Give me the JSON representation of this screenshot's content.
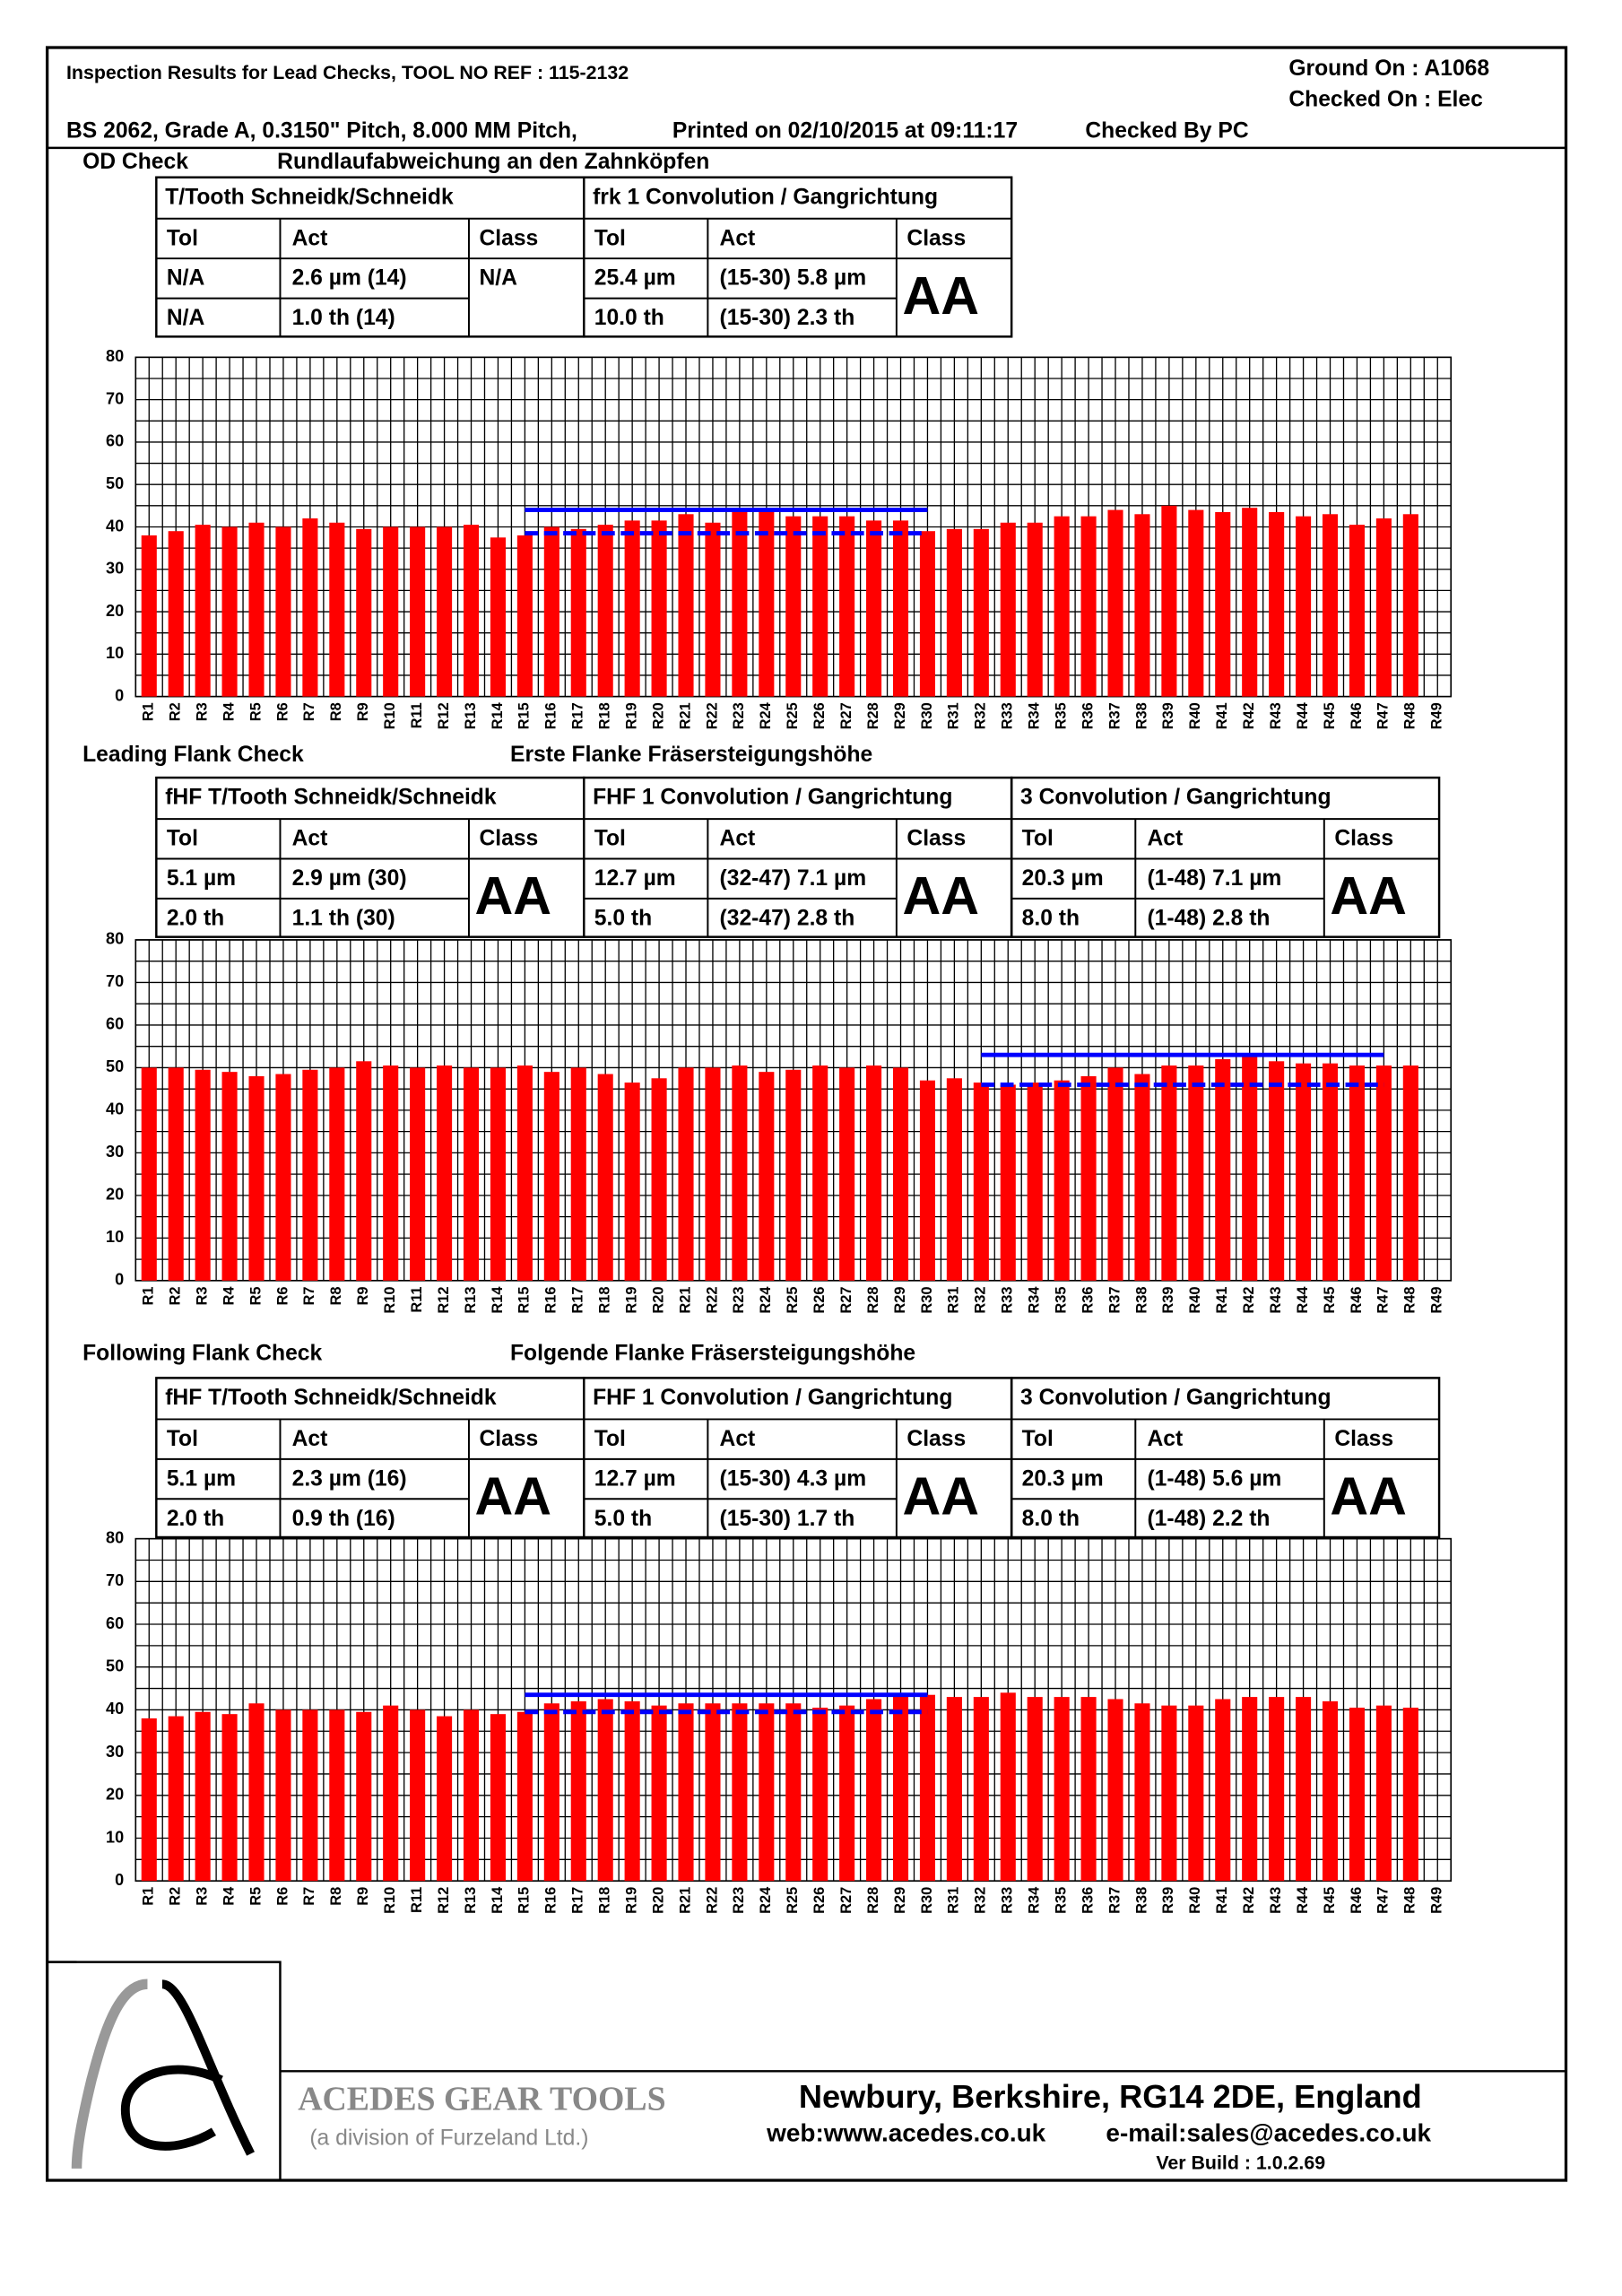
{
  "header": {
    "title": "Inspection Results for Lead Checks, TOOL NO REF : 115-2132",
    "ground_on": "Ground On : A1068",
    "checked_on": "Checked On : Elec",
    "spec": "BS 2062, Grade A, 0.3150\" Pitch, 8.000 MM Pitch,",
    "printed": "Printed on 02/10/2015 at 09:11:17",
    "checked_by": "Checked By PC"
  },
  "sections": [
    {
      "title": "OD Check",
      "subtitle": "Rundlaufabweichung an den Zahnköpfen",
      "table": [
        {
          "heading": "T/Tooth Schneidk/Schneidk",
          "columns": [
            "Tol",
            "Act",
            "Class"
          ],
          "rows": [
            [
              "N/A",
              "2.6 µm (14)"
            ],
            [
              "N/A",
              "1.0  th (14)"
            ]
          ],
          "class": "N/A"
        },
        {
          "heading": "frk 1 Convolution  / Gangrichtung",
          "columns": [
            "Tol",
            "Act",
            "Class"
          ],
          "rows": [
            [
              "25.4 µm",
              "(15-30) 5.8 µm"
            ],
            [
              "10.0 th",
              "(15-30) 2.3 th"
            ]
          ],
          "class": "AA"
        }
      ]
    },
    {
      "title": "Leading Flank Check",
      "subtitle": "Erste Flanke Fräsersteigungshöhe",
      "table": [
        {
          "heading": "fHF   T/Tooth   Schneidk/Schneidk",
          "columns": [
            "Tol",
            "Act",
            "Class"
          ],
          "rows": [
            [
              "5.1 µm",
              "2.9 µm (30)"
            ],
            [
              "2.0 th",
              "1.1  th (30)"
            ]
          ],
          "class": "AA"
        },
        {
          "heading": "FHF  1 Convolution / Gangrichtung",
          "columns": [
            "Tol",
            "Act",
            "Class"
          ],
          "rows": [
            [
              "12.7 µm",
              "(32-47) 7.1 µm"
            ],
            [
              "5.0 th",
              "(32-47) 2.8 th"
            ]
          ],
          "class": "AA"
        },
        {
          "heading": "3 Convolution / Gangrichtung",
          "columns": [
            "Tol",
            "Act",
            "Class"
          ],
          "rows": [
            [
              "20.3 µm",
              "(1-48) 7.1 µm"
            ],
            [
              "8.0 th",
              "(1-48) 2.8 th"
            ]
          ],
          "class": "AA"
        }
      ]
    },
    {
      "title": "Following Flank Check",
      "subtitle": "Folgende Flanke Fräsersteigungshöhe",
      "table": [
        {
          "heading": "fHF   T/Tooth   Schneidk/Schneidk",
          "columns": [
            "Tol",
            "Act",
            "Class"
          ],
          "rows": [
            [
              "5.1 µm",
              "2.3 µm (16)"
            ],
            [
              "2.0 th",
              "0.9  th (16)"
            ]
          ],
          "class": "AA"
        },
        {
          "heading": "FHF  1 Convolution / Gangrichtung",
          "columns": [
            "Tol",
            "Act",
            "Class"
          ],
          "rows": [
            [
              "12.7 µm",
              "(15-30) 4.3 µm"
            ],
            [
              "5.0 th",
              "(15-30) 1.7 th"
            ]
          ],
          "class": "AA"
        },
        {
          "heading": "3 Convolution / Gangrichtung",
          "columns": [
            "Tol",
            "Act",
            "Class"
          ],
          "rows": [
            [
              "20.3 µm",
              "(1-48) 5.6 µm"
            ],
            [
              "8.0 th",
              "(1-48) 2.2 th"
            ]
          ],
          "class": "AA"
        }
      ]
    }
  ],
  "chart_data": [
    {
      "type": "bar",
      "color": "#ff0000",
      "ylim": [
        0,
        80
      ],
      "yticks": [
        0,
        10,
        20,
        30,
        40,
        50,
        60,
        70,
        80
      ],
      "ygrid": [
        5,
        15,
        25,
        35,
        45,
        55,
        65,
        75
      ],
      "grid": true,
      "categories": [
        "R1",
        "R2",
        "R3",
        "R4",
        "R5",
        "R6",
        "R7",
        "R8",
        "R9",
        "R10",
        "R11",
        "R12",
        "R13",
        "R14",
        "R15",
        "R16",
        "R17",
        "R18",
        "R19",
        "R20",
        "R21",
        "R22",
        "R23",
        "R24",
        "R25",
        "R26",
        "R27",
        "R28",
        "R29",
        "R30",
        "R31",
        "R32",
        "R33",
        "R34",
        "R35",
        "R36",
        "R37",
        "R38",
        "R39",
        "R40",
        "R41",
        "R42",
        "R43",
        "R44",
        "R45",
        "R46",
        "R47",
        "R48",
        "R49"
      ],
      "values": [
        38,
        39,
        40.5,
        40,
        41,
        40,
        42,
        41,
        39.5,
        40,
        40,
        40,
        40.5,
        37.5,
        38,
        40,
        39.5,
        40.5,
        41.5,
        41.5,
        43,
        41,
        43.5,
        43.5,
        42.5,
        42.5,
        42.5,
        41.5,
        41.5,
        39,
        39.5,
        39.5,
        41,
        41,
        42.5,
        42.5,
        44,
        43,
        45,
        44,
        43.5,
        44.5,
        43.5,
        42.5,
        43,
        40.5,
        42,
        43,
        null
      ],
      "lines": [
        {
          "color": "#0000ff",
          "dashed": false,
          "values": [
            null,
            null,
            null,
            null,
            null,
            null,
            null,
            null,
            null,
            null,
            null,
            null,
            null,
            null,
            44,
            44,
            44,
            44,
            44,
            44,
            44,
            44,
            44,
            44,
            44,
            44,
            44,
            44,
            44,
            44,
            null,
            null,
            null,
            null,
            null,
            null,
            null,
            null,
            null,
            null,
            null,
            null,
            null,
            null,
            null,
            null,
            null,
            null,
            null
          ]
        },
        {
          "color": "#0000ff",
          "dashed": true,
          "values": [
            null,
            null,
            null,
            null,
            null,
            null,
            null,
            null,
            null,
            null,
            null,
            null,
            null,
            null,
            38.5,
            38.5,
            38.5,
            38.5,
            38.5,
            38.5,
            38.5,
            38.5,
            38.5,
            38.5,
            38.5,
            38.5,
            38.5,
            38.5,
            38.5,
            38.5,
            null,
            null,
            null,
            null,
            null,
            null,
            null,
            null,
            null,
            null,
            null,
            null,
            null,
            null,
            null,
            null,
            null,
            null,
            null
          ]
        }
      ]
    },
    {
      "type": "bar",
      "color": "#ff0000",
      "ylim": [
        0,
        80
      ],
      "yticks": [
        0,
        10,
        20,
        30,
        40,
        50,
        60,
        70,
        80
      ],
      "ygrid": [
        5,
        15,
        25,
        35,
        45,
        55,
        65,
        75
      ],
      "grid": true,
      "categories": [
        "R1",
        "R2",
        "R3",
        "R4",
        "R5",
        "R6",
        "R7",
        "R8",
        "R9",
        "R10",
        "R11",
        "R12",
        "R13",
        "R14",
        "R15",
        "R16",
        "R17",
        "R18",
        "R19",
        "R20",
        "R21",
        "R22",
        "R23",
        "R24",
        "R25",
        "R26",
        "R27",
        "R28",
        "R29",
        "R30",
        "R31",
        "R32",
        "R33",
        "R34",
        "R35",
        "R36",
        "R37",
        "R38",
        "R39",
        "R40",
        "R41",
        "R42",
        "R43",
        "R44",
        "R45",
        "R46",
        "R47",
        "R48",
        "R49"
      ],
      "values": [
        50,
        50,
        49.5,
        49,
        48,
        48.5,
        49.5,
        50,
        51.5,
        50.5,
        50,
        50.5,
        50,
        50,
        50.5,
        49,
        50,
        48.5,
        46.5,
        47.5,
        50,
        50,
        50.5,
        49,
        49.5,
        50.5,
        50,
        50.5,
        50,
        47,
        47.5,
        46.5,
        46,
        46.5,
        47,
        48,
        50,
        48.5,
        50.5,
        50.5,
        52,
        53,
        51.5,
        51,
        51,
        50.5,
        50.5,
        50.5,
        null
      ],
      "lines": [
        {
          "color": "#0000ff",
          "dashed": false,
          "values": [
            null,
            null,
            null,
            null,
            null,
            null,
            null,
            null,
            null,
            null,
            null,
            null,
            null,
            null,
            null,
            null,
            null,
            null,
            null,
            null,
            null,
            null,
            null,
            null,
            null,
            null,
            null,
            null,
            null,
            null,
            null,
            53,
            53,
            53,
            53,
            53,
            53,
            53,
            53,
            53,
            53,
            53,
            53,
            53,
            53,
            53,
            53,
            null,
            null
          ]
        },
        {
          "color": "#0000ff",
          "dashed": true,
          "values": [
            null,
            null,
            null,
            null,
            null,
            null,
            null,
            null,
            null,
            null,
            null,
            null,
            null,
            null,
            null,
            null,
            null,
            null,
            null,
            null,
            null,
            null,
            null,
            null,
            null,
            null,
            null,
            null,
            null,
            null,
            null,
            46,
            46,
            46,
            46,
            46,
            46,
            46,
            46,
            46,
            46,
            46,
            46,
            46,
            46,
            46,
            46,
            null,
            null
          ]
        }
      ]
    },
    {
      "type": "bar",
      "color": "#ff0000",
      "ylim": [
        0,
        80
      ],
      "yticks": [
        0,
        10,
        20,
        30,
        40,
        50,
        60,
        70,
        80
      ],
      "ygrid": [
        5,
        15,
        25,
        35,
        45,
        55,
        65,
        75
      ],
      "grid": true,
      "categories": [
        "R1",
        "R2",
        "R3",
        "R4",
        "R5",
        "R6",
        "R7",
        "R8",
        "R9",
        "R10",
        "R11",
        "R12",
        "R13",
        "R14",
        "R15",
        "R16",
        "R17",
        "R18",
        "R19",
        "R20",
        "R21",
        "R22",
        "R23",
        "R24",
        "R25",
        "R26",
        "R27",
        "R28",
        "R29",
        "R30",
        "R31",
        "R32",
        "R33",
        "R34",
        "R35",
        "R36",
        "R37",
        "R38",
        "R39",
        "R40",
        "R41",
        "R42",
        "R43",
        "R44",
        "R45",
        "R46",
        "R47",
        "R48",
        "R49"
      ],
      "values": [
        38,
        38.5,
        39.5,
        39,
        41.5,
        40,
        40,
        40,
        39.5,
        41,
        40,
        38.5,
        40,
        39,
        39.5,
        41.5,
        42,
        42.5,
        42,
        41,
        41.5,
        41.5,
        41.5,
        41.5,
        41.5,
        40.5,
        41,
        42.5,
        43.5,
        43.5,
        43,
        43,
        44,
        43,
        43,
        43,
        42.5,
        41.5,
        41,
        41,
        42.5,
        43,
        43,
        43,
        42,
        40.5,
        41,
        40.5,
        null
      ],
      "lines": [
        {
          "color": "#0000ff",
          "dashed": false,
          "values": [
            null,
            null,
            null,
            null,
            null,
            null,
            null,
            null,
            null,
            null,
            null,
            null,
            null,
            null,
            43.5,
            43.5,
            43.5,
            43.5,
            43.5,
            43.5,
            43.5,
            43.5,
            43.5,
            43.5,
            43.5,
            43.5,
            43.5,
            43.5,
            43.5,
            43.5,
            null,
            null,
            null,
            null,
            null,
            null,
            null,
            null,
            null,
            null,
            null,
            null,
            null,
            null,
            null,
            null,
            null,
            null,
            null
          ]
        },
        {
          "color": "#0000ff",
          "dashed": true,
          "values": [
            null,
            null,
            null,
            null,
            null,
            null,
            null,
            null,
            null,
            null,
            null,
            null,
            null,
            null,
            39.5,
            39.5,
            39.5,
            39.5,
            39.5,
            39.5,
            39.5,
            39.5,
            39.5,
            39.5,
            39.5,
            39.5,
            39.5,
            39.5,
            39.5,
            39.5,
            null,
            null,
            null,
            null,
            null,
            null,
            null,
            null,
            null,
            null,
            null,
            null,
            null,
            null,
            null,
            null,
            null,
            null,
            null
          ]
        }
      ]
    }
  ],
  "footer": {
    "company": "ACEDES GEAR TOOLS",
    "division": "(a division of Furzeland Ltd.)",
    "address": "Newbury, Berkshire, RG14 2DE, England",
    "web": "web:www.acedes.co.uk",
    "email": "e-mail:sales@acedes.co.uk",
    "version": "Ver  Build : 1.0.2.69"
  }
}
